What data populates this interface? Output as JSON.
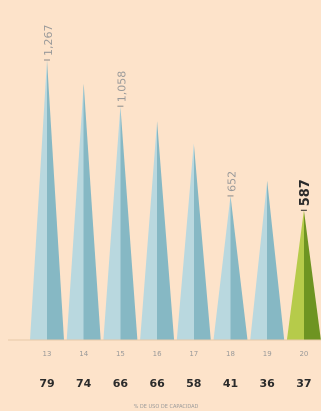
{
  "colors": {
    "background": "#fde3ca",
    "spike_light": "#b9d8df",
    "spike_dark": "#86b8c4",
    "highlight_light": "#b6cb4a",
    "highlight_dark": "#6e9422",
    "label_dark": "#2b2b2b",
    "label_muted": "#9a9a9a"
  },
  "chart_data": {
    "type": "bar",
    "shape": "spike",
    "categories": [
      "13",
      "14",
      "15",
      "16",
      "17",
      "18",
      "19",
      "20"
    ],
    "values": [
      1267,
      null,
      1058,
      null,
      null,
      652,
      null,
      587
    ],
    "value_labels": [
      "1,267",
      "",
      "1,058",
      "",
      "",
      "652",
      "",
      "587"
    ],
    "highlight_index": 7,
    "second_row": [
      "79",
      "74",
      "66",
      "66",
      "58",
      "41",
      "36",
      "37"
    ],
    "second_row_caption": "% DE USO DE CAPACIDAD",
    "grid": false,
    "legend": "none"
  }
}
